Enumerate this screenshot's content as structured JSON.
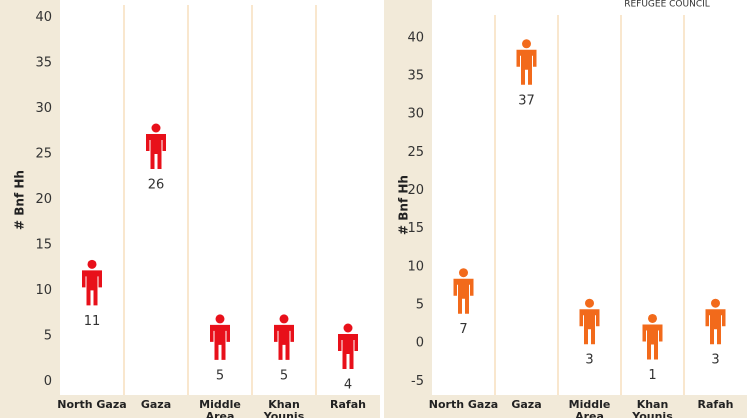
{
  "chart_data": [
    {
      "type": "pictogram",
      "y_label": "# Bnf Hh",
      "categories": [
        "North Gaza",
        "Gaza",
        "Middle Area",
        "Khan Younis",
        "Rafah"
      ],
      "values": [
        11,
        26,
        5,
        5,
        4
      ],
      "color": "#e8101a",
      "ylim": [
        -1.5,
        41.4
      ],
      "yticks": [
        0,
        5,
        10,
        15,
        20,
        25,
        30,
        35,
        40
      ]
    },
    {
      "type": "pictogram",
      "y_label": "# Bnf Hh",
      "source": "REFUGEE COUNCIL",
      "categories": [
        "North Gaza",
        "Gaza",
        "Middle Area",
        "Khan Younis",
        "Rafah"
      ],
      "values": [
        7,
        37,
        3,
        1,
        3
      ],
      "color": "#f26a1b",
      "ylim": [
        -6.8,
        43
      ],
      "yticks": [
        -5,
        0,
        5,
        10,
        15,
        20,
        25,
        30,
        35,
        40
      ]
    }
  ]
}
